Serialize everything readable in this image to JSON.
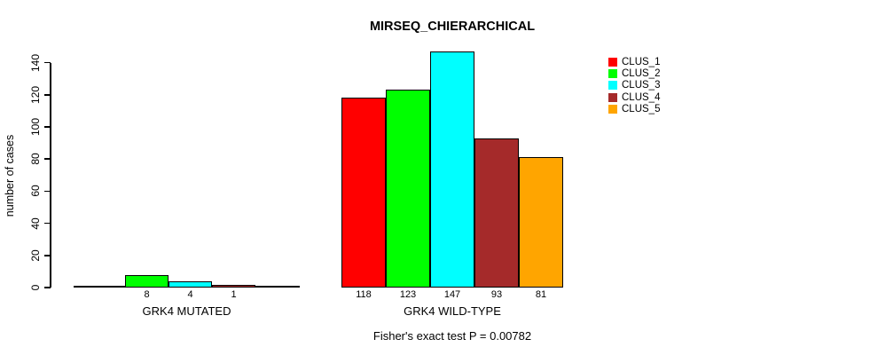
{
  "chart_data": {
    "type": "bar",
    "title": "MIRSEQ_CHIERARCHICAL",
    "ylabel": "number of cases",
    "subtitle": "Fisher's exact test P = 0.00782",
    "yticks": [
      0,
      20,
      40,
      60,
      80,
      100,
      120,
      140
    ],
    "ylim": [
      0,
      147
    ],
    "grid": false,
    "legend_position": "top-right",
    "legend": [
      {
        "label": "CLUS_1",
        "color": "#FF0000"
      },
      {
        "label": "CLUS_2",
        "color": "#00FF00"
      },
      {
        "label": "CLUS_3",
        "color": "#00FFFF"
      },
      {
        "label": "CLUS_4",
        "color": "#A52A2A"
      },
      {
        "label": "CLUS_5",
        "color": "#FFA500"
      }
    ],
    "groups": [
      {
        "label": "GRK4 MUTATED",
        "bars": [
          {
            "cluster": "CLUS_2",
            "value": 8,
            "color": "#00FF00"
          },
          {
            "cluster": "CLUS_3",
            "value": 4,
            "color": "#00FFFF"
          },
          {
            "cluster": "CLUS_4",
            "value": 1,
            "color": "#A52A2A"
          }
        ]
      },
      {
        "label": "GRK4 WILD-TYPE",
        "bars": [
          {
            "cluster": "CLUS_1",
            "value": 118,
            "color": "#FF0000"
          },
          {
            "cluster": "CLUS_2",
            "value": 123,
            "color": "#00FF00"
          },
          {
            "cluster": "CLUS_3",
            "value": 147,
            "color": "#00FFFF"
          },
          {
            "cluster": "CLUS_4",
            "value": 93,
            "color": "#A52A2A"
          },
          {
            "cluster": "CLUS_5",
            "value": 81,
            "color": "#FFA500"
          }
        ]
      }
    ]
  }
}
